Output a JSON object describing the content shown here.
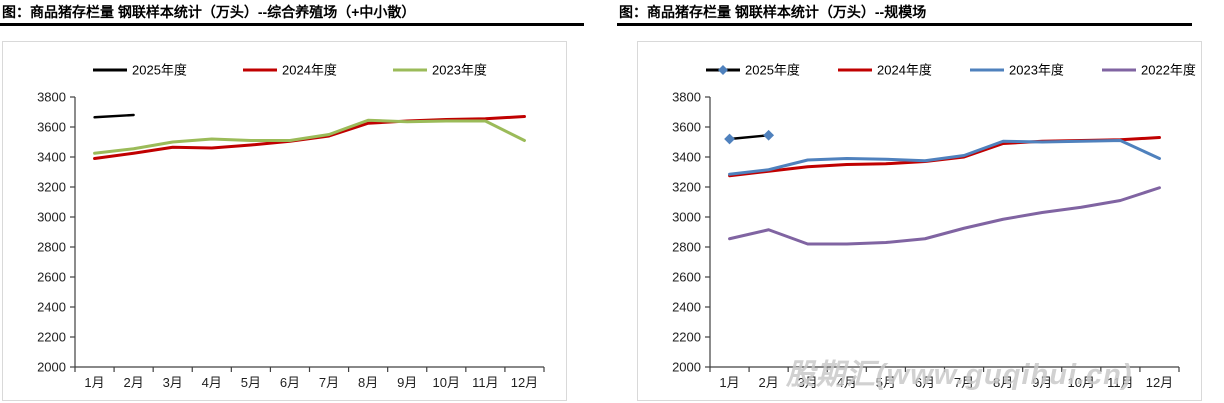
{
  "chart_data": [
    {
      "type": "line",
      "title": "图：商品猪存栏量 钢联样本统计（万头）--综合养殖场（+中小散）",
      "categories": [
        "1月",
        "2月",
        "3月",
        "4月",
        "5月",
        "6月",
        "7月",
        "8月",
        "9月",
        "10月",
        "11月",
        "12月"
      ],
      "ylim": [
        2000,
        3800
      ],
      "ytick_step": 200,
      "grid": false,
      "legend_position": "top",
      "series": [
        {
          "name": "2025年度",
          "color": "#000000",
          "values": [
            3665,
            3680
          ]
        },
        {
          "name": "2024年度",
          "color": "#C00000",
          "values": [
            3390,
            3425,
            3465,
            3460,
            3480,
            3505,
            3540,
            3625,
            3640,
            3650,
            3655,
            3670
          ]
        },
        {
          "name": "2023年度",
          "color": "#9BBB59",
          "values": [
            3425,
            3455,
            3500,
            3520,
            3510,
            3510,
            3550,
            3645,
            3635,
            3640,
            3640,
            3510
          ]
        }
      ]
    },
    {
      "type": "line",
      "title": "图：商品猪存栏量 钢联样本统计（万头）--规模场",
      "categories": [
        "1月",
        "2月",
        "3月",
        "4月",
        "5月",
        "6月",
        "7月",
        "8月",
        "9月",
        "10月",
        "11月",
        "12月"
      ],
      "ylim": [
        2000,
        3800
      ],
      "ytick_step": 200,
      "grid": false,
      "legend_position": "top",
      "watermark": "股期汇(www.guqihui.cn)",
      "series": [
        {
          "name": "2025年度",
          "color": "#000000",
          "marker": "diamond",
          "marker_color": "#4F81BD",
          "values": [
            3520,
            3545
          ]
        },
        {
          "name": "2024年度",
          "color": "#C00000",
          "values": [
            3275,
            3305,
            3335,
            3350,
            3355,
            3370,
            3400,
            3490,
            3505,
            3510,
            3515,
            3530
          ]
        },
        {
          "name": "2023年度",
          "color": "#4F81BD",
          "values": [
            3285,
            3315,
            3380,
            3390,
            3385,
            3375,
            3410,
            3505,
            3500,
            3505,
            3510,
            3390
          ]
        },
        {
          "name": "2022年度",
          "color": "#8064A2",
          "values": [
            2855,
            2915,
            2820,
            2820,
            2830,
            2855,
            2925,
            2985,
            3030,
            3065,
            3110,
            3195
          ]
        }
      ]
    }
  ]
}
